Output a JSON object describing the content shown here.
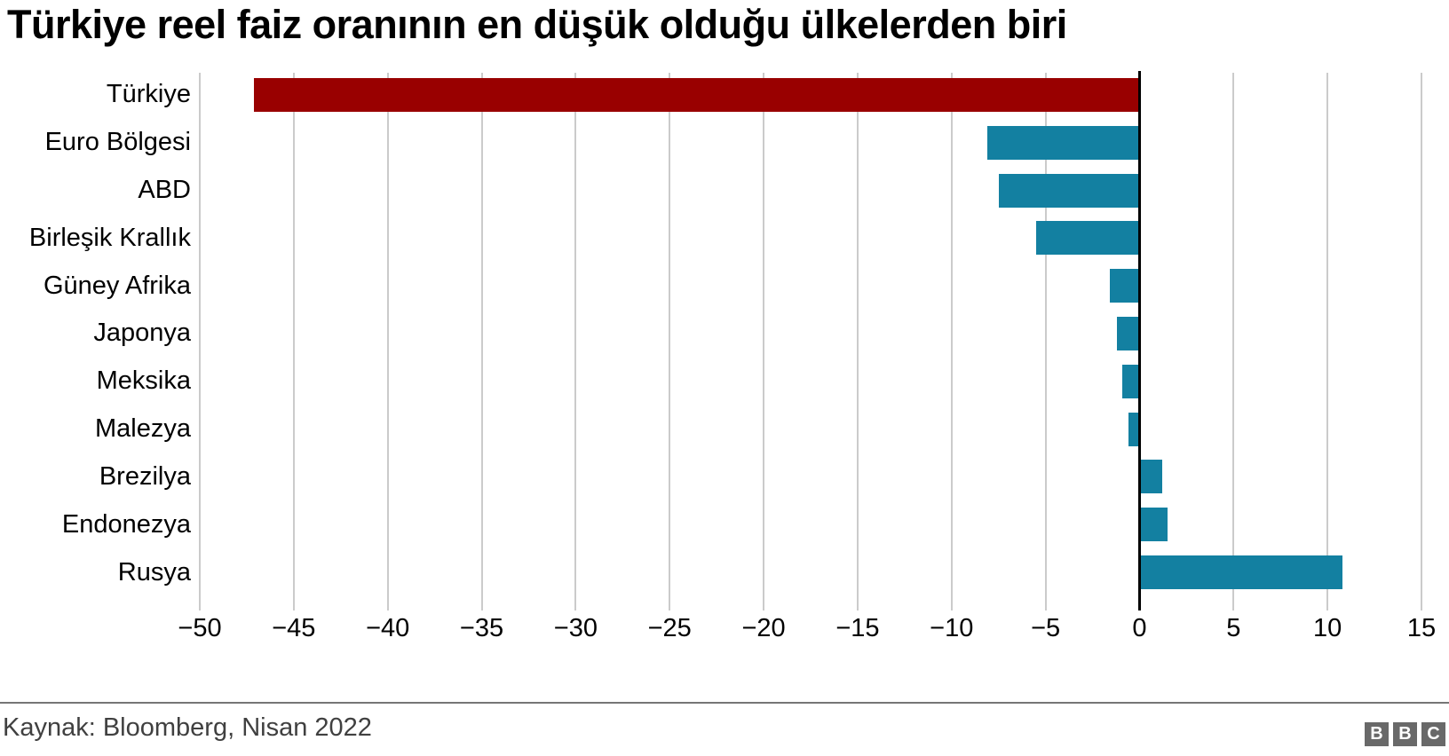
{
  "title": "Türkiye reel faiz oranının en düşük olduğu ülkelerden biri",
  "footer": {
    "source": "Kaynak: Bloomberg, Nisan 2022",
    "logo_letters": [
      "B",
      "B",
      "C"
    ]
  },
  "colors": {
    "highlight_bar": "#990000",
    "default_bar": "#1380a1",
    "gridline": "#cbcbcb",
    "zero_line": "#000000",
    "title_text": "#000000",
    "caption_text": "#404040",
    "logo_block": "#696969"
  },
  "chart_data": {
    "type": "bar",
    "orientation": "horizontal",
    "title": "Türkiye reel faiz oranının en düşük olduğu ülkelerden biri",
    "xlabel": "",
    "ylabel": "",
    "categories": [
      "Türkiye",
      "Euro Bölgesi",
      "ABD",
      "Birleşik Krallık",
      "Güney Afrika",
      "Japonya",
      "Meksika",
      "Malezya",
      "Brezilya",
      "Endonezya",
      "Rusya"
    ],
    "values": [
      -47.1,
      -8.1,
      -7.5,
      -5.5,
      -1.6,
      -1.2,
      -0.9,
      -0.6,
      1.2,
      1.5,
      10.8
    ],
    "highlight_category": "Türkiye",
    "xlim": [
      -50,
      15
    ],
    "xticks": [
      -50,
      -45,
      -40,
      -35,
      -30,
      -25,
      -20,
      -15,
      -10,
      -5,
      0,
      5,
      10,
      15
    ],
    "xtick_labels": [
      "−50",
      "−45",
      "−40",
      "−35",
      "−30",
      "−25",
      "−20",
      "−15",
      "−10",
      "−5",
      "0",
      "5",
      "10",
      "15"
    ],
    "grid": true,
    "legend": "none",
    "unit": "percent"
  }
}
